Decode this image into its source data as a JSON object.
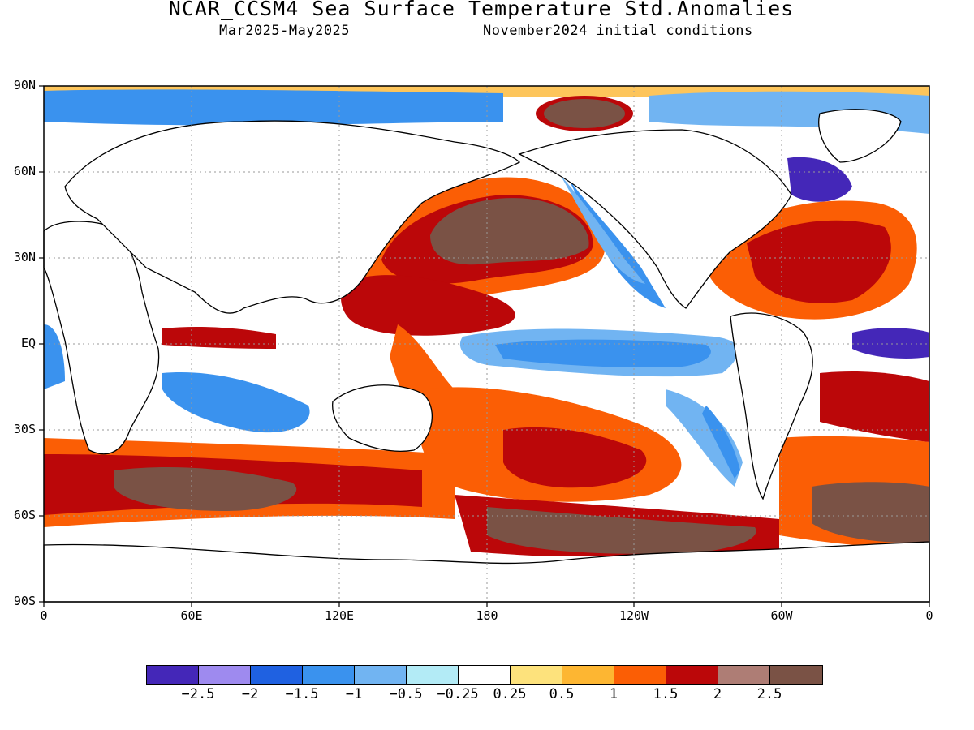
{
  "header": {
    "title": "NCAR_CCSM4 Sea Surface Temperature Std.Anomalies",
    "period": "Mar2025-May2025",
    "init": "November2024 initial conditions"
  },
  "map": {
    "lat_labels": [
      "90N",
      "60N",
      "30N",
      "EQ",
      "30S",
      "60S",
      "90S"
    ],
    "lon_labels": [
      "0",
      "60E",
      "120E",
      "180",
      "120W",
      "60W",
      "0"
    ]
  },
  "colorbar": {
    "colors": [
      "#4427b8",
      "#9e8aef",
      "#1f61e1",
      "#3a92ee",
      "#71b4f2",
      "#b3ebf6",
      "#ffffff",
      "#fde27c",
      "#fdb632",
      "#fb5e05",
      "#bb0709",
      "#ae7d75",
      "#7a5245"
    ],
    "labels": [
      "-2.5",
      "-2",
      "-1.5",
      "-1",
      "-0.5",
      "-0.25",
      "0.25",
      "0.5",
      "1",
      "1.5",
      "2",
      "2.5"
    ]
  }
}
